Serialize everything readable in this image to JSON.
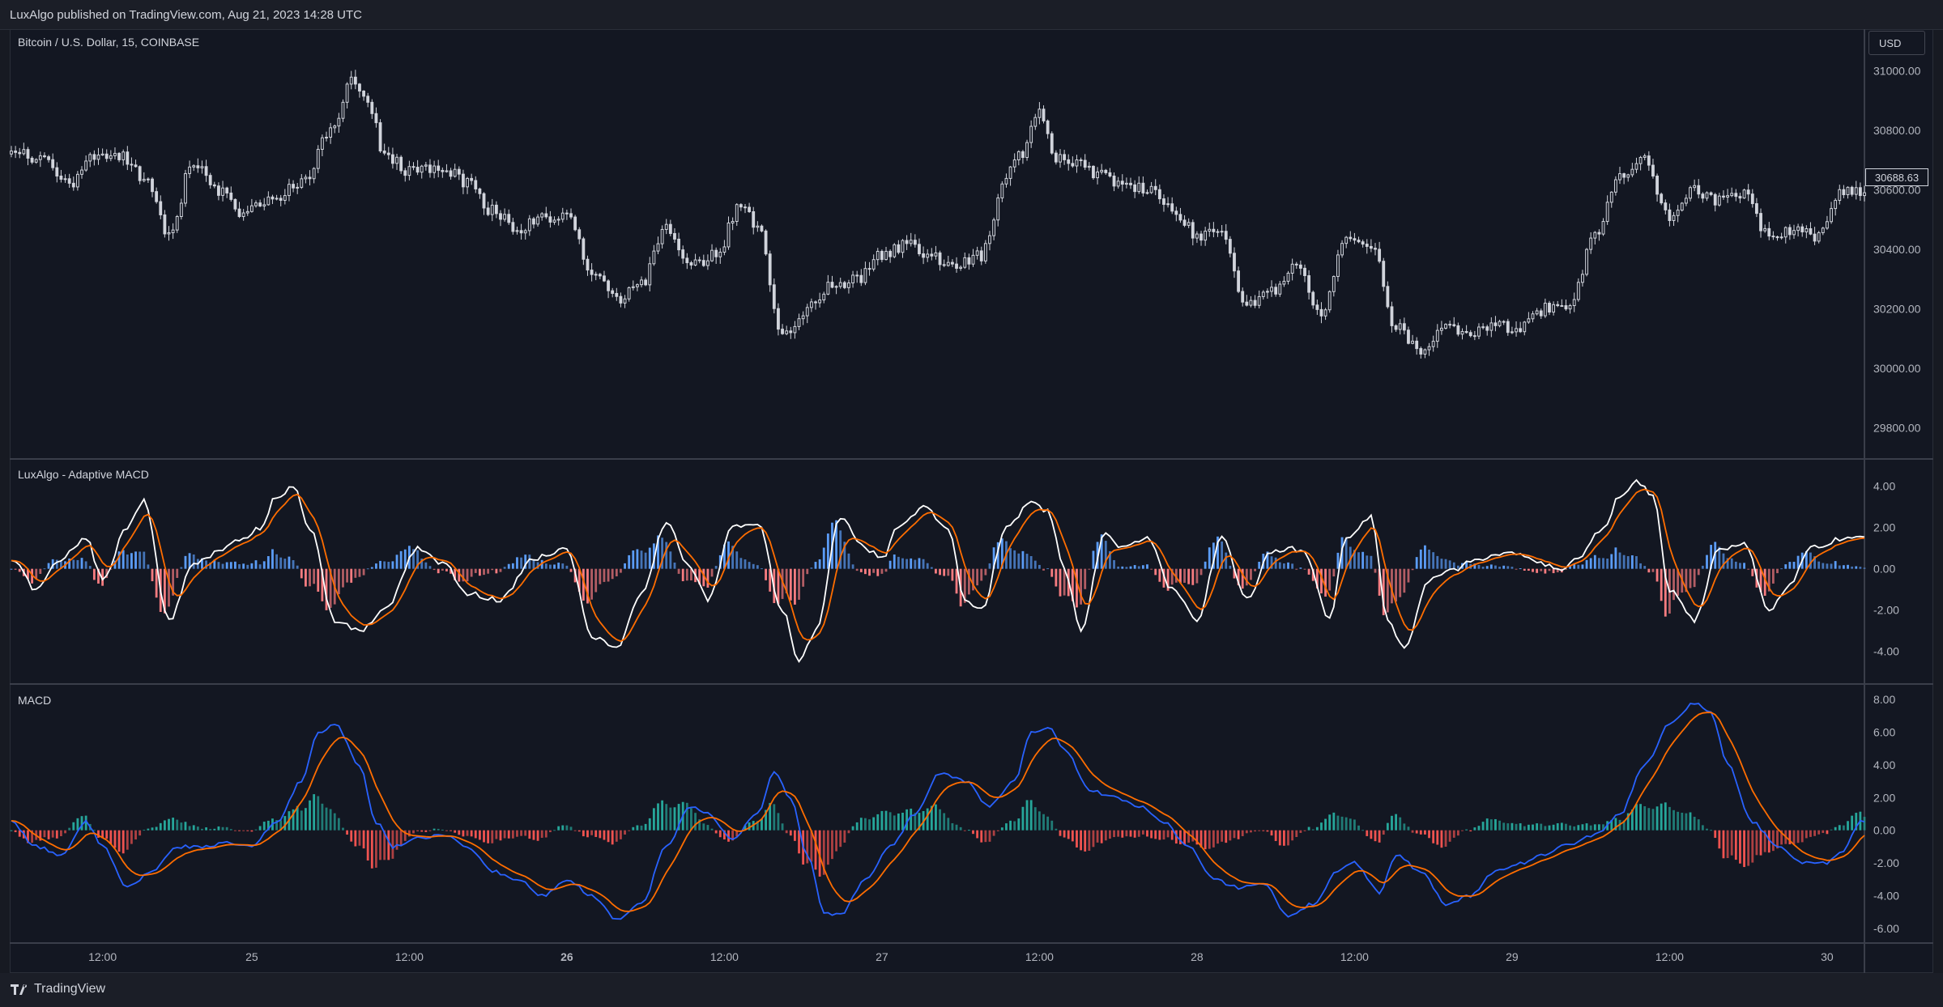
{
  "header": {
    "published": "LuxAlgo published on TradingView.com, Aug 21, 2023 14:28 UTC"
  },
  "footer": {
    "brand": "TradingView",
    "logo_icon": "tradingview-logo-icon"
  },
  "currency": "USD",
  "last_price": "30688.63",
  "colors": {
    "background": "#131722",
    "candle": "#d1d4dc",
    "adaptive_hist_pos": "#5b9cf6",
    "adaptive_hist_neg": "#f77c80",
    "adaptive_macd_line": "#ffffff",
    "adaptive_signal_line": "#ff6d00",
    "macd_hist_pos": "#26a69a",
    "macd_hist_neg": "#ef5350",
    "macd_line": "#2962ff",
    "signal_line": "#ff6d00"
  },
  "chart_data": [
    {
      "type": "candlestick",
      "title": "Bitcoin / U.S. Dollar, 15, COINBASE",
      "ylim": [
        29700,
        31130
      ],
      "y_ticks": [
        "31000.00",
        "30800.00",
        "30600.00",
        "30400.00",
        "30200.00",
        "30000.00",
        "29800.00"
      ],
      "close_anchors": [
        [
          0,
          30740
        ],
        [
          8,
          30700
        ],
        [
          14,
          30620
        ],
        [
          20,
          30720
        ],
        [
          26,
          30720
        ],
        [
          32,
          30640
        ],
        [
          38,
          30450
        ],
        [
          44,
          30700
        ],
        [
          50,
          30600
        ],
        [
          56,
          30520
        ],
        [
          62,
          30560
        ],
        [
          70,
          30620
        ],
        [
          78,
          30830
        ],
        [
          82,
          30960
        ],
        [
          86,
          30900
        ],
        [
          90,
          30720
        ],
        [
          96,
          30660
        ],
        [
          104,
          30680
        ],
        [
          110,
          30620
        ],
        [
          116,
          30530
        ],
        [
          122,
          30470
        ],
        [
          128,
          30500
        ],
        [
          134,
          30520
        ],
        [
          140,
          30320
        ],
        [
          146,
          30230
        ],
        [
          152,
          30280
        ],
        [
          158,
          30480
        ],
        [
          164,
          30350
        ],
        [
          170,
          30380
        ],
        [
          176,
          30560
        ],
        [
          180,
          30480
        ],
        [
          186,
          30100
        ],
        [
          192,
          30200
        ],
        [
          198,
          30280
        ],
        [
          204,
          30300
        ],
        [
          210,
          30380
        ],
        [
          216,
          30420
        ],
        [
          222,
          30370
        ],
        [
          228,
          30350
        ],
        [
          234,
          30380
        ],
        [
          240,
          30650
        ],
        [
          244,
          30720
        ],
        [
          248,
          30870
        ],
        [
          252,
          30700
        ],
        [
          256,
          30700
        ],
        [
          262,
          30650
        ],
        [
          268,
          30620
        ],
        [
          274,
          30600
        ],
        [
          280,
          30530
        ],
        [
          286,
          30450
        ],
        [
          292,
          30460
        ],
        [
          298,
          30210
        ],
        [
          304,
          30260
        ],
        [
          310,
          30360
        ],
        [
          316,
          30180
        ],
        [
          322,
          30430
        ],
        [
          328,
          30410
        ],
        [
          334,
          30140
        ],
        [
          340,
          30050
        ],
        [
          346,
          30130
        ],
        [
          352,
          30120
        ],
        [
          358,
          30140
        ],
        [
          364,
          30130
        ],
        [
          370,
          30200
        ],
        [
          376,
          30220
        ],
        [
          382,
          30450
        ],
        [
          388,
          30650
        ],
        [
          394,
          30700
        ],
        [
          400,
          30500
        ],
        [
          406,
          30600
        ],
        [
          412,
          30560
        ],
        [
          418,
          30590
        ],
        [
          424,
          30440
        ],
        [
          430,
          30470
        ],
        [
          436,
          30440
        ],
        [
          442,
          30600
        ]
      ]
    },
    {
      "type": "oscillator",
      "title": "LuxAlgo - Adaptive MACD",
      "ylim": [
        -5.5,
        5.2
      ],
      "y_ticks": [
        "4.00",
        "2.00",
        "0.00",
        "-2.00",
        "-4.00"
      ],
      "macd_anchors": [
        [
          0,
          0.5
        ],
        [
          6,
          -1.0
        ],
        [
          12,
          0.5
        ],
        [
          18,
          1.5
        ],
        [
          22,
          -0.5
        ],
        [
          28,
          2.0
        ],
        [
          32,
          3.3
        ],
        [
          38,
          -2.5
        ],
        [
          44,
          0.3
        ],
        [
          50,
          0.8
        ],
        [
          56,
          1.5
        ],
        [
          60,
          2.0
        ],
        [
          64,
          3.5
        ],
        [
          68,
          4.0
        ],
        [
          72,
          2.0
        ],
        [
          78,
          -2.5
        ],
        [
          84,
          -3.0
        ],
        [
          90,
          -2.0
        ],
        [
          98,
          1.0
        ],
        [
          104,
          0.3
        ],
        [
          110,
          -1.2
        ],
        [
          118,
          -1.5
        ],
        [
          126,
          0.5
        ],
        [
          134,
          1.0
        ],
        [
          140,
          -3.3
        ],
        [
          146,
          -3.8
        ],
        [
          152,
          -1.2
        ],
        [
          158,
          2.2
        ],
        [
          164,
          0.0
        ],
        [
          168,
          -1.5
        ],
        [
          174,
          2.0
        ],
        [
          180,
          2.2
        ],
        [
          186,
          -2.0
        ],
        [
          190,
          -4.5
        ],
        [
          194,
          -3.0
        ],
        [
          200,
          2.5
        ],
        [
          206,
          1.0
        ],
        [
          210,
          0.5
        ],
        [
          214,
          2.0
        ],
        [
          220,
          3.0
        ],
        [
          226,
          2.0
        ],
        [
          230,
          -1.5
        ],
        [
          234,
          -2.0
        ],
        [
          240,
          2.0
        ],
        [
          246,
          3.2
        ],
        [
          250,
          2.8
        ],
        [
          254,
          0.0
        ],
        [
          258,
          -3.0
        ],
        [
          264,
          1.8
        ],
        [
          268,
          1.0
        ],
        [
          274,
          1.5
        ],
        [
          280,
          -1.0
        ],
        [
          286,
          -2.5
        ],
        [
          292,
          1.5
        ],
        [
          298,
          -1.5
        ],
        [
          304,
          0.8
        ],
        [
          308,
          1.0
        ],
        [
          312,
          0.8
        ],
        [
          318,
          -2.5
        ],
        [
          322,
          1.5
        ],
        [
          328,
          2.5
        ],
        [
          332,
          -2.5
        ],
        [
          336,
          -3.8
        ],
        [
          342,
          -0.5
        ],
        [
          348,
          0.0
        ],
        [
          354,
          0.5
        ],
        [
          362,
          0.8
        ],
        [
          368,
          0.3
        ],
        [
          374,
          0.0
        ],
        [
          378,
          0.5
        ],
        [
          384,
          2.0
        ],
        [
          388,
          3.5
        ],
        [
          392,
          4.3
        ],
        [
          396,
          3.5
        ],
        [
          400,
          -1.0
        ],
        [
          406,
          -2.5
        ],
        [
          412,
          1.0
        ],
        [
          418,
          1.2
        ],
        [
          424,
          -2.0
        ],
        [
          428,
          -1.0
        ],
        [
          434,
          1.0
        ],
        [
          442,
          1.5
        ]
      ],
      "signal_smoothing": 6
    },
    {
      "type": "oscillator",
      "title": "MACD",
      "ylim": [
        -6.8,
        8.8
      ],
      "y_ticks": [
        "8.00",
        "6.00",
        "4.00",
        "2.00",
        "0.00",
        "-2.00",
        "-4.00",
        "-6.00"
      ],
      "macd_anchors": [
        [
          0,
          0.5
        ],
        [
          6,
          -1.0
        ],
        [
          12,
          -1.5
        ],
        [
          18,
          0.5
        ],
        [
          22,
          -1.0
        ],
        [
          28,
          -3.5
        ],
        [
          34,
          -2.5
        ],
        [
          40,
          -1.0
        ],
        [
          46,
          -1.0
        ],
        [
          52,
          -0.8
        ],
        [
          58,
          -1.0
        ],
        [
          64,
          0.5
        ],
        [
          70,
          3.0
        ],
        [
          74,
          6.0
        ],
        [
          78,
          6.5
        ],
        [
          84,
          4.0
        ],
        [
          88,
          0.5
        ],
        [
          92,
          -1.0
        ],
        [
          98,
          -0.5
        ],
        [
          104,
          -0.3
        ],
        [
          110,
          -1.0
        ],
        [
          116,
          -2.5
        ],
        [
          122,
          -3.0
        ],
        [
          128,
          -4.0
        ],
        [
          134,
          -3.0
        ],
        [
          140,
          -4.0
        ],
        [
          146,
          -5.4
        ],
        [
          152,
          -4.5
        ],
        [
          158,
          -1.0
        ],
        [
          164,
          1.5
        ],
        [
          168,
          1.0
        ],
        [
          174,
          -0.5
        ],
        [
          180,
          1.0
        ],
        [
          184,
          3.5
        ],
        [
          188,
          2.0
        ],
        [
          192,
          -1.5
        ],
        [
          196,
          -5.0
        ],
        [
          200,
          -5.2
        ],
        [
          206,
          -3.0
        ],
        [
          212,
          -1.0
        ],
        [
          218,
          1.0
        ],
        [
          224,
          3.5
        ],
        [
          230,
          3.0
        ],
        [
          236,
          1.5
        ],
        [
          242,
          3.0
        ],
        [
          246,
          6.0
        ],
        [
          250,
          6.3
        ],
        [
          254,
          5.0
        ],
        [
          260,
          2.5
        ],
        [
          266,
          2.0
        ],
        [
          272,
          1.5
        ],
        [
          278,
          0.5
        ],
        [
          284,
          -1.0
        ],
        [
          290,
          -3.0
        ],
        [
          296,
          -3.5
        ],
        [
          302,
          -3.2
        ],
        [
          308,
          -5.3
        ],
        [
          314,
          -4.5
        ],
        [
          320,
          -2.5
        ],
        [
          324,
          -2.0
        ],
        [
          330,
          -3.8
        ],
        [
          334,
          -1.5
        ],
        [
          340,
          -2.5
        ],
        [
          346,
          -4.5
        ],
        [
          352,
          -4.0
        ],
        [
          358,
          -2.5
        ],
        [
          364,
          -2.0
        ],
        [
          370,
          -1.5
        ],
        [
          376,
          -0.8
        ],
        [
          382,
          -0.3
        ],
        [
          388,
          1.0
        ],
        [
          394,
          4.0
        ],
        [
          400,
          6.5
        ],
        [
          406,
          7.8
        ],
        [
          410,
          7.2
        ],
        [
          414,
          4.0
        ],
        [
          420,
          0.5
        ],
        [
          426,
          -1.0
        ],
        [
          432,
          -2.0
        ],
        [
          438,
          -2.0
        ],
        [
          442,
          -1.2
        ],
        [
          446,
          0.5
        ]
      ],
      "signal_smoothing": 8
    }
  ],
  "x_axis": {
    "ticks": [
      {
        "label": "12:00",
        "bar": 22,
        "bold": false
      },
      {
        "label": "25",
        "bar": 58,
        "bold": false
      },
      {
        "label": "12:00",
        "bar": 96,
        "bold": false
      },
      {
        "label": "26",
        "bar": 134,
        "bold": true
      },
      {
        "label": "12:00",
        "bar": 172,
        "bold": false
      },
      {
        "label": "27",
        "bar": 210,
        "bold": false
      },
      {
        "label": "12:00",
        "bar": 248,
        "bold": false
      },
      {
        "label": "28",
        "bar": 286,
        "bold": false
      },
      {
        "label": "12:00",
        "bar": 324,
        "bold": false
      },
      {
        "label": "29",
        "bar": 362,
        "bold": false
      },
      {
        "label": "12:00",
        "bar": 400,
        "bold": false
      },
      {
        "label": "30",
        "bar": 438,
        "bold": false
      }
    ]
  }
}
